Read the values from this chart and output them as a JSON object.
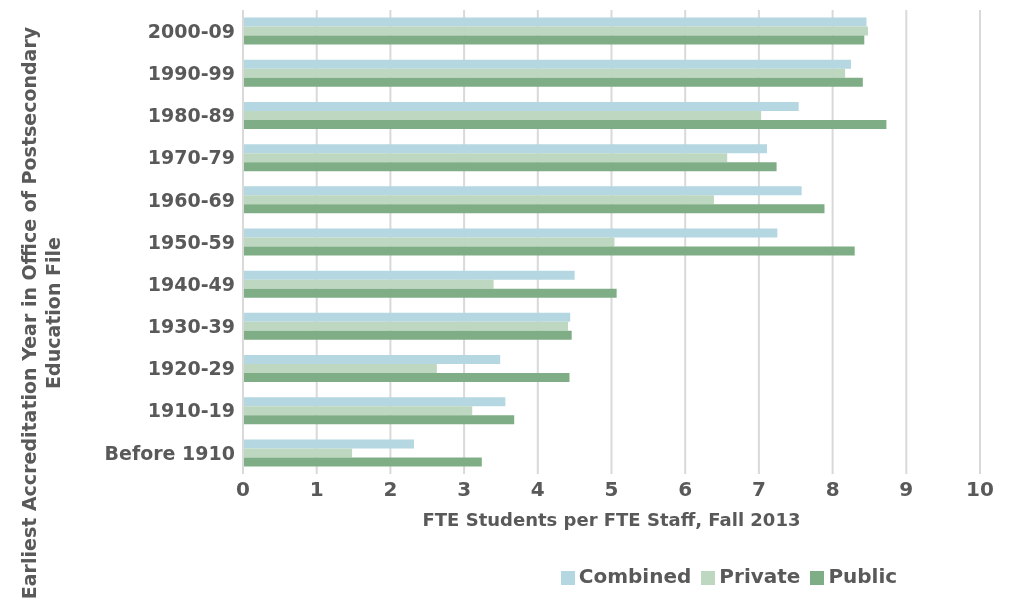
{
  "chart_data": {
    "type": "bar",
    "orientation": "horizontal",
    "xlabel": "FTE Students per FTE Staff, Fall 2013",
    "ylabel": "Earliest Accreditation Year in Office of Postsecondary Education File",
    "categories": [
      "2000-09",
      "1990-99",
      "1980-89",
      "1970-79",
      "1960-69",
      "1950-59",
      "1940-49",
      "1930-39",
      "1920-29",
      "1910-19",
      "Before 1910"
    ],
    "series": [
      {
        "name": "Combined",
        "color": "#b4d7e1",
        "values": [
          8.46,
          8.25,
          7.54,
          7.11,
          7.58,
          7.25,
          4.5,
          4.44,
          3.49,
          3.56,
          2.32
        ]
      },
      {
        "name": "Private",
        "color": "#bdd7c0",
        "values": [
          8.48,
          8.17,
          7.03,
          6.57,
          6.39,
          5.04,
          3.4,
          4.41,
          2.63,
          3.11,
          1.48
        ]
      },
      {
        "name": "Public",
        "color": "#7fae86",
        "values": [
          8.43,
          8.41,
          8.73,
          7.24,
          7.89,
          8.3,
          5.07,
          4.46,
          4.43,
          3.68,
          3.24
        ]
      }
    ],
    "xlim": [
      0,
      10
    ],
    "xticks": [
      0,
      1,
      2,
      3,
      4,
      5,
      6,
      7,
      8,
      9,
      10
    ],
    "grid": "x",
    "legend": "bottom"
  }
}
